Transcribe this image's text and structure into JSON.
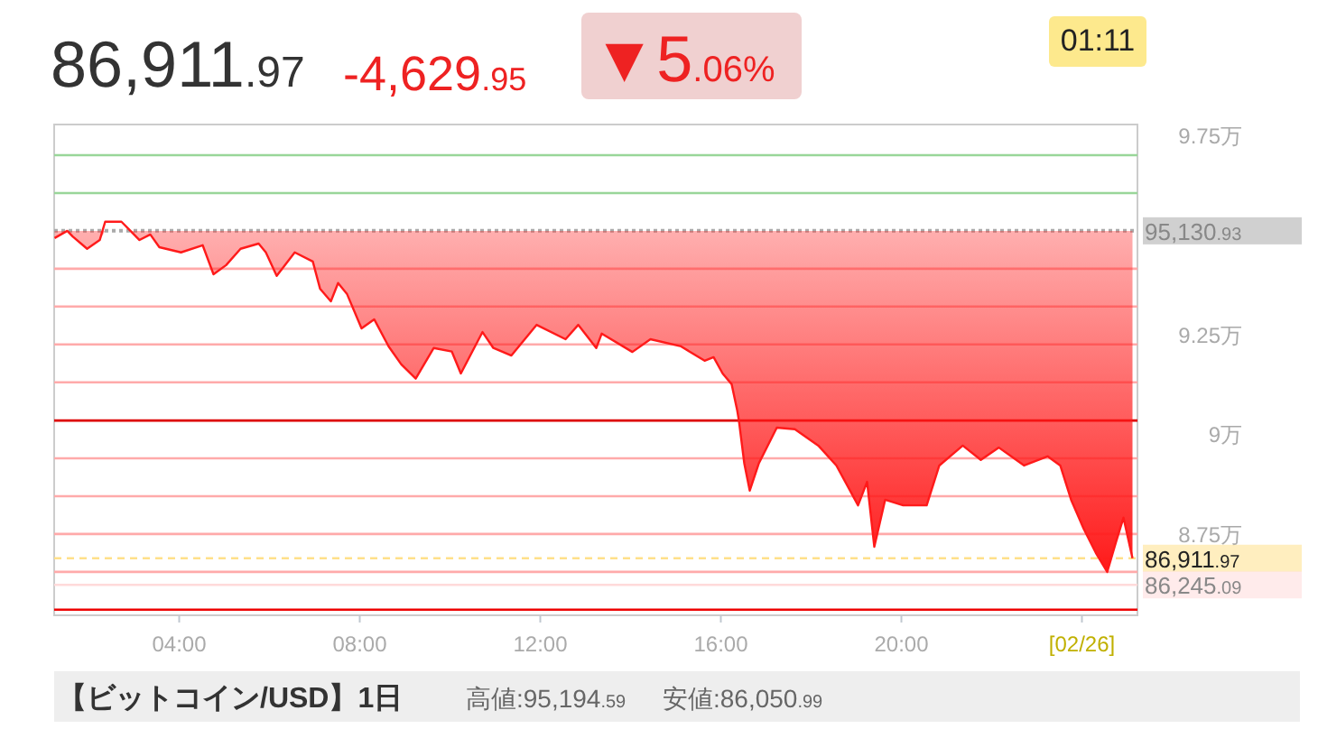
{
  "chart_data": {
    "type": "line",
    "title": "86,911.97",
    "annotations": [
      "-4,629.95",
      "▼5.06%",
      "01:11",
      "【ビットコイン/USD】1日",
      "高値:95,194.59",
      "安値:86,050.99"
    ],
    "x": [
      1.24,
      1.52,
      1.64,
      1.96,
      2.24,
      2.36,
      2.72,
      2.92,
      3.12,
      3.36,
      3.56,
      4.04,
      4.52,
      4.76,
      5.04,
      5.36,
      5.76,
      5.92,
      6.16,
      6.56,
      6.96,
      7.12,
      7.36,
      7.52,
      7.72,
      8.04,
      8.32,
      8.64,
      8.92,
      9.24,
      9.64,
      10.04,
      10.24,
      10.72,
      10.96,
      11.36,
      11.92,
      12.56,
      12.84,
      13.24,
      13.36,
      14.04,
      14.44,
      15.12,
      15.64,
      15.84,
      16.04,
      16.24,
      16.36,
      16.4,
      16.52,
      16.64,
      16.84,
      17.24,
      17.64,
      18.16,
      18.56,
      19.04,
      19.24,
      19.4,
      19.64,
      20.04,
      20.56,
      20.84,
      21.36,
      21.76,
      22.16,
      22.72,
      23.24,
      23.52,
      23.76,
      24.04,
      24.32,
      24.56,
      24.76,
      24.92,
      25.12
    ],
    "series": [
      {
        "color": "#ff1a1a",
        "values": [
          9.495,
          9.513,
          9.499,
          9.468,
          9.49,
          9.536,
          9.536,
          9.513,
          9.49,
          9.504,
          9.472,
          9.459,
          9.477,
          9.404,
          9.427,
          9.468,
          9.481,
          9.459,
          9.4,
          9.459,
          9.436,
          9.368,
          9.336,
          9.382,
          9.354,
          9.268,
          9.291,
          9.223,
          9.178,
          9.142,
          9.219,
          9.21,
          9.155,
          9.259,
          9.219,
          9.2,
          9.277,
          9.241,
          9.277,
          9.219,
          9.255,
          9.209,
          9.241,
          9.223,
          9.187,
          9.196,
          9.155,
          9.128,
          9.064,
          9.037,
          8.929,
          8.861,
          8.929,
          9.019,
          9.015,
          8.974,
          8.924,
          8.824,
          8.883,
          8.72,
          8.838,
          8.824,
          8.824,
          8.924,
          8.974,
          8.938,
          8.969,
          8.924,
          8.947,
          8.924,
          8.838,
          8.765,
          8.702,
          8.657,
          8.734,
          8.793,
          8.691
        ],
        "lower": [
          9.495,
          9.513,
          9.499,
          9.468,
          9.49,
          9.513,
          9.513,
          9.513,
          9.49,
          9.504,
          9.472,
          9.459,
          9.477,
          9.404,
          9.427,
          9.468,
          9.481,
          9.459,
          9.4,
          9.459,
          9.436,
          9.368,
          9.336,
          9.382,
          9.354,
          9.268,
          9.291,
          9.223,
          9.178,
          9.142,
          9.219,
          9.21,
          9.155,
          9.259,
          9.219,
          9.2,
          9.277,
          9.241,
          9.277,
          9.219,
          9.255,
          9.209,
          9.241,
          9.223,
          9.187,
          9.196,
          9.155,
          9.128,
          9.064,
          9.037,
          8.929,
          8.861,
          8.929,
          9.019,
          9.015,
          8.974,
          8.924,
          8.824,
          8.883,
          8.72,
          8.838,
          8.824,
          8.824,
          8.924,
          8.974,
          8.938,
          8.969,
          8.924,
          8.947,
          8.924,
          8.838,
          8.765,
          8.702,
          8.657,
          8.734,
          8.793,
          8.691
        ],
        "upper": [
          9.513,
          9.513,
          9.513,
          9.513,
          9.513,
          9.513,
          9.513,
          9.513,
          9.513,
          9.513,
          9.513,
          9.513,
          9.513,
          9.513,
          9.513,
          9.513,
          9.513,
          9.513,
          9.513,
          9.513,
          9.513,
          9.513,
          9.513,
          9.513,
          9.513,
          9.513,
          9.513,
          9.513,
          9.513,
          9.513,
          9.513,
          9.513,
          9.513,
          9.513,
          9.513,
          9.513,
          9.513,
          9.513,
          9.513,
          9.513,
          9.513,
          9.513,
          9.513,
          9.513,
          9.513,
          9.513,
          9.513,
          9.513,
          9.513,
          9.513,
          9.513,
          9.513,
          9.513,
          9.513,
          9.513,
          9.513,
          9.513,
          9.513,
          9.513,
          9.513,
          9.513,
          9.513,
          9.513,
          9.513,
          9.513,
          9.513,
          9.513,
          9.513,
          9.513,
          9.513,
          9.513,
          9.513,
          9.513,
          9.513,
          9.513,
          9.513,
          9.513
        ]
      }
    ],
    "xlim": [
      1.23,
      25.23
    ],
    "xticks": [
      {
        "value": 4,
        "label": "04:00"
      },
      {
        "value": 8,
        "label": "08:00"
      },
      {
        "value": 12,
        "label": "12:00"
      },
      {
        "value": 16,
        "label": "16:00"
      },
      {
        "value": 20,
        "label": "20:00"
      },
      {
        "value": 24,
        "label": "[02/26]"
      }
    ],
    "ylim": [
      8.548,
      9.78
    ],
    "y2lim": [
      85480,
      97800
    ],
    "yticks": [
      {
        "value": 8.75,
        "label": "8.75万"
      },
      {
        "value": 9,
        "label": "9万"
      },
      {
        "value": 9.25,
        "label": "9.25万"
      },
      {
        "value": 9.75,
        "label": "9.75万"
      }
    ],
    "ref_lines": [
      {
        "axis": "y",
        "value": 9.703,
        "color": "#99d699",
        "line_style": "solid"
      },
      {
        "axis": "y",
        "value": 9.608,
        "color": "#99d699",
        "line_style": "solid"
      },
      {
        "axis": "y",
        "value": 9.418,
        "color": "#ffaaaa",
        "line_style": "solid"
      },
      {
        "axis": "y",
        "value": 9.323,
        "color": "#ffaaaa",
        "line_style": "solid"
      },
      {
        "axis": "y",
        "value": 9.228,
        "color": "#ffaaaa",
        "line_style": "solid"
      },
      {
        "axis": "y",
        "value": 9.133,
        "color": "#ffaaaa",
        "line_style": "solid"
      },
      {
        "axis": "y",
        "value": 9.037,
        "color": "#dd0000",
        "line_style": "solid"
      },
      {
        "axis": "y",
        "value": 8.942,
        "color": "#ffaaaa",
        "line_style": "solid"
      },
      {
        "axis": "y",
        "value": 8.847,
        "color": "#ffaaaa",
        "line_style": "solid"
      },
      {
        "axis": "y",
        "value": 8.752,
        "color": "#ffaaaa",
        "line_style": "solid"
      },
      {
        "axis": "y",
        "value": 8.657,
        "color": "#ffaaaa",
        "line_style": "solid"
      },
      {
        "axis": "y",
        "value": 8.562,
        "color": "#ee0000",
        "line_style": "solid"
      },
      {
        "axis": "y2",
        "value": 95130.93,
        "label": "95,130.93",
        "color": "#aaaaaa",
        "line_style": "dotted"
      },
      {
        "axis": "y2",
        "value": 86911.97,
        "label": "86,911.97",
        "color": "#ffe08a",
        "line_style": "dashed"
      },
      {
        "axis": "y2",
        "value": 86245.09,
        "label": "86,245.09",
        "color": "#ffdada",
        "line_style": "solid"
      }
    ]
  }
}
